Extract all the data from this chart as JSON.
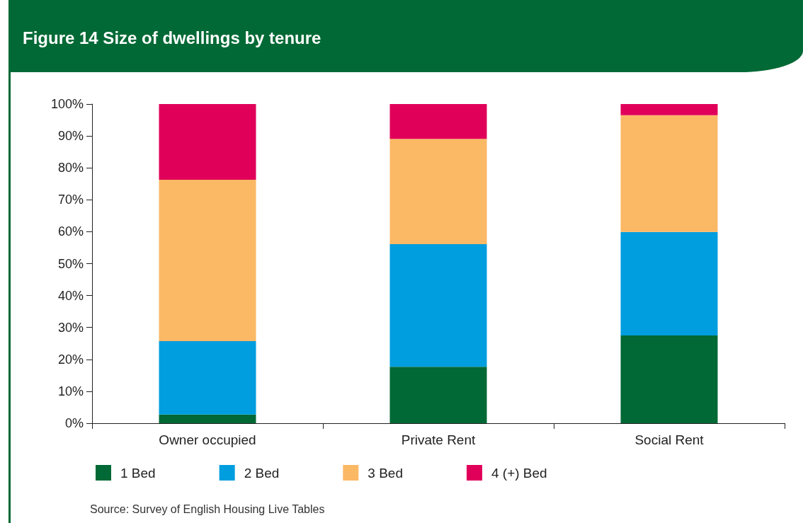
{
  "chart_data": {
    "type": "bar",
    "stacked": true,
    "title": "Figure 14 Size of dwellings by tenure",
    "categories": [
      "Owner occupied",
      "Private Rent",
      "Social Rent"
    ],
    "series": [
      {
        "name": "1 Bed",
        "color": "#006935",
        "values": [
          2.7,
          17.7,
          27.5
        ]
      },
      {
        "name": "2 Bed",
        "color": "#009ddf",
        "values": [
          23.0,
          38.4,
          32.4
        ]
      },
      {
        "name": "3 Bed",
        "color": "#fbb865",
        "values": [
          50.6,
          33.0,
          36.6
        ]
      },
      {
        "name": "4 (+) Bed",
        "color": "#e0005a",
        "values": [
          23.7,
          10.9,
          3.5
        ]
      }
    ],
    "ylim": [
      0,
      100
    ],
    "yticks": [
      {
        "value": 0,
        "label": "0%"
      },
      {
        "value": 10,
        "label": "10%"
      },
      {
        "value": 20,
        "label": "20%"
      },
      {
        "value": 30,
        "label": "30%"
      },
      {
        "value": 40,
        "label": "40%"
      },
      {
        "value": 50,
        "label": "50%"
      },
      {
        "value": 60,
        "label": "60%"
      },
      {
        "value": 70,
        "label": "70%"
      },
      {
        "value": 80,
        "label": "80%"
      },
      {
        "value": 90,
        "label": "90%"
      },
      {
        "value": 100,
        "label": "100%"
      }
    ],
    "grid": false,
    "legend": "bottom left",
    "annotations": [
      "Source: Survey of English Housing Live Tables"
    ]
  }
}
